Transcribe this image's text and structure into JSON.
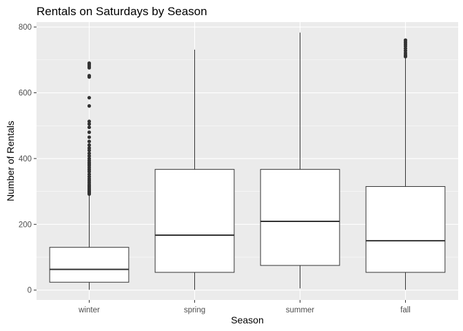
{
  "chart_data": {
    "type": "boxplot",
    "title": "Rentals on Saturdays by Season",
    "xlabel": "Season",
    "ylabel": "Number of Rentals",
    "categories": [
      "winter",
      "spring",
      "summer",
      "fall"
    ],
    "ylim": [
      -30,
      815
    ],
    "yticks": [
      0,
      200,
      400,
      600,
      800
    ],
    "grid": true,
    "legend": "none",
    "boxes": [
      {
        "category": "winter",
        "whisker_low": 1,
        "q1": 24,
        "median": 63,
        "q3": 130,
        "whisker_high": 288,
        "outliers": [
          292,
          296,
          300,
          305,
          310,
          315,
          320,
          326,
          332,
          338,
          345,
          352,
          360,
          366,
          372,
          378,
          383,
          388,
          394,
          400,
          408,
          416,
          425,
          432,
          441,
          452,
          465,
          480,
          495,
          505,
          513,
          560,
          585,
          648,
          652,
          676,
          681,
          686,
          690
        ]
      },
      {
        "category": "spring",
        "whisker_low": 1,
        "q1": 54,
        "median": 167,
        "q3": 367,
        "whisker_high": 731,
        "outliers": []
      },
      {
        "category": "summer",
        "whisker_low": 5,
        "q1": 75,
        "median": 209,
        "q3": 367,
        "whisker_high": 783,
        "outliers": []
      },
      {
        "category": "fall",
        "whisker_low": 1,
        "q1": 54,
        "median": 150,
        "q3": 315,
        "whisker_high": 705,
        "outliers": [
          710,
          715,
          721,
          728,
          735,
          742,
          748,
          754,
          760
        ]
      }
    ],
    "colors": {
      "panel_background": "#ebebeb",
      "grid_major": "#ffffff",
      "box_fill": "#ffffff",
      "box_stroke": "#333333",
      "outlier": "#333333",
      "tick_label": "#4d4d4d"
    }
  }
}
